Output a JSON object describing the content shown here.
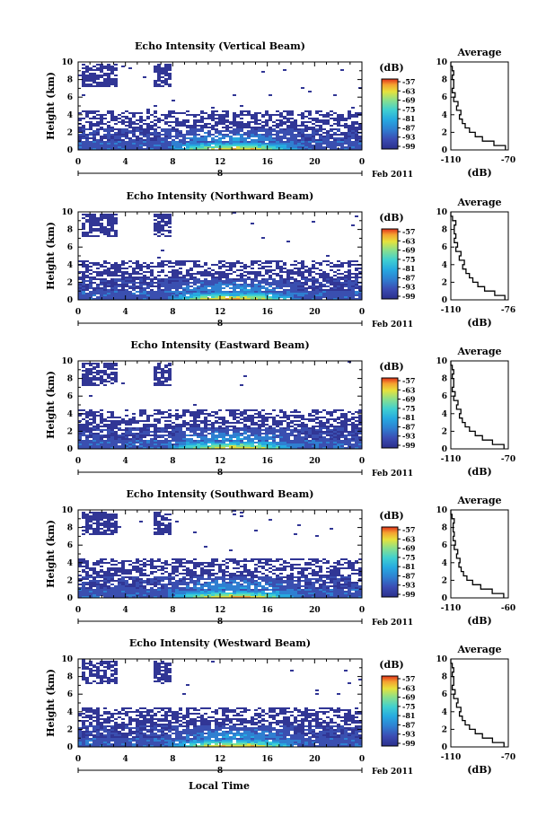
{
  "chart_data": [
    {
      "type": "heatmap",
      "title": "Echo Intensity (Vertical Beam)",
      "ylabel": "Height (km)",
      "xlabel": "",
      "x_ticks": [
        "0",
        "4",
        "8",
        "12",
        "16",
        "20",
        "0"
      ],
      "y_ticks": [
        "0",
        "2",
        "4",
        "6",
        "8",
        "10"
      ],
      "ylim": [
        0,
        10
      ],
      "xlim": [
        0,
        24
      ],
      "date_label": "Feb 2011",
      "date_marker": "8",
      "colorbar_unit": "(dB)",
      "colorbar_ticks": [
        "-57",
        "-63",
        "-69",
        "-75",
        "-81",
        "-87",
        "-93",
        "-99"
      ],
      "profile": {
        "title": "Average",
        "xlabel": "(dB)",
        "x_ticks": [
          "-110",
          "-70"
        ],
        "xlim": [
          -110,
          -70
        ],
        "y_ticks": [
          "0",
          "2",
          "4",
          "6",
          "8",
          "10"
        ],
        "points": [
          [
            -72,
            0
          ],
          [
            -80,
            0.5
          ],
          [
            -88,
            1
          ],
          [
            -93,
            1.5
          ],
          [
            -97,
            2
          ],
          [
            -100,
            2.5
          ],
          [
            -102,
            3
          ],
          [
            -104,
            3.5
          ],
          [
            -103,
            4
          ],
          [
            -106,
            4.5
          ],
          [
            -105,
            5
          ],
          [
            -108,
            5.5
          ],
          [
            -107,
            6
          ],
          [
            -109,
            6.5
          ],
          [
            -108,
            7
          ],
          [
            -108,
            7.5
          ],
          [
            -109,
            8
          ],
          [
            -108,
            8.5
          ],
          [
            -109,
            9
          ],
          [
            -110,
            9.5
          ]
        ]
      }
    },
    {
      "type": "heatmap",
      "title": "Echo Intensity (Northward Beam)",
      "ylabel": "Height (km)",
      "xlabel": "",
      "x_ticks": [
        "0",
        "4",
        "8",
        "12",
        "16",
        "20",
        "0"
      ],
      "y_ticks": [
        "0",
        "2",
        "4",
        "6",
        "8",
        "10"
      ],
      "ylim": [
        0,
        10
      ],
      "xlim": [
        0,
        24
      ],
      "date_label": "Feb 2011",
      "date_marker": "8",
      "colorbar_unit": "(dB)",
      "colorbar_ticks": [
        "-57",
        "-63",
        "-69",
        "-75",
        "-81",
        "-87",
        "-93",
        "-99"
      ],
      "profile": {
        "title": "Average",
        "xlabel": "(dB)",
        "x_ticks": [
          "-110",
          "-76"
        ],
        "xlim": [
          -110,
          -76
        ],
        "y_ticks": [
          "0",
          "2",
          "4",
          "6",
          "8",
          "10"
        ],
        "points": [
          [
            -78,
            0
          ],
          [
            -84,
            0.5
          ],
          [
            -90,
            1
          ],
          [
            -94,
            1.5
          ],
          [
            -97,
            2
          ],
          [
            -99,
            2.5
          ],
          [
            -101,
            3
          ],
          [
            -103,
            3.5
          ],
          [
            -102,
            4
          ],
          [
            -105,
            4.5
          ],
          [
            -104,
            5
          ],
          [
            -107,
            5.5
          ],
          [
            -106,
            6
          ],
          [
            -108,
            6.5
          ],
          [
            -107,
            7
          ],
          [
            -108,
            7.5
          ],
          [
            -108,
            8
          ],
          [
            -107,
            8.5
          ],
          [
            -109,
            9
          ],
          [
            -110,
            9.5
          ]
        ]
      }
    },
    {
      "type": "heatmap",
      "title": "Echo Intensity (Eastward Beam)",
      "ylabel": "Height (km)",
      "xlabel": "",
      "x_ticks": [
        "0",
        "4",
        "8",
        "12",
        "16",
        "20",
        "0"
      ],
      "y_ticks": [
        "0",
        "2",
        "4",
        "6",
        "8",
        "10"
      ],
      "ylim": [
        0,
        10
      ],
      "xlim": [
        0,
        24
      ],
      "date_label": "Feb 2011",
      "date_marker": "8",
      "colorbar_unit": "(dB)",
      "colorbar_ticks": [
        "-57",
        "-63",
        "-69",
        "-75",
        "-81",
        "-87",
        "-93",
        "-99"
      ],
      "profile": {
        "title": "Average",
        "xlabel": "(dB)",
        "x_ticks": [
          "-110",
          "-70"
        ],
        "xlim": [
          -110,
          -70
        ],
        "y_ticks": [
          "0",
          "2",
          "4",
          "6",
          "8",
          "10"
        ],
        "points": [
          [
            -73,
            0
          ],
          [
            -81,
            0.5
          ],
          [
            -88,
            1
          ],
          [
            -93,
            1.5
          ],
          [
            -97,
            2
          ],
          [
            -100,
            2.5
          ],
          [
            -102,
            3
          ],
          [
            -104,
            3.5
          ],
          [
            -103,
            4
          ],
          [
            -106,
            4.5
          ],
          [
            -105,
            5
          ],
          [
            -108,
            5.5
          ],
          [
            -107,
            6
          ],
          [
            -109,
            6.5
          ],
          [
            -108,
            7
          ],
          [
            -108,
            7.5
          ],
          [
            -109,
            8
          ],
          [
            -108,
            8.5
          ],
          [
            -109,
            9
          ],
          [
            -110,
            9.5
          ]
        ]
      }
    },
    {
      "type": "heatmap",
      "title": "Echo Intensity (Southward Beam)",
      "ylabel": "Height (km)",
      "xlabel": "",
      "x_ticks": [
        "0",
        "4",
        "8",
        "12",
        "16",
        "20",
        "0"
      ],
      "y_ticks": [
        "0",
        "2",
        "4",
        "6",
        "8",
        "10"
      ],
      "ylim": [
        0,
        10
      ],
      "xlim": [
        0,
        24
      ],
      "date_label": "Feb 2011",
      "date_marker": "8",
      "colorbar_unit": "(dB)",
      "colorbar_ticks": [
        "-57",
        "-63",
        "-69",
        "-75",
        "-81",
        "-87",
        "-93",
        "-99"
      ],
      "profile": {
        "title": "Average",
        "xlabel": "(dB)",
        "x_ticks": [
          "-110",
          "-60"
        ],
        "xlim": [
          -110,
          -60
        ],
        "y_ticks": [
          "0",
          "2",
          "4",
          "6",
          "8",
          "10"
        ],
        "points": [
          [
            -64,
            0
          ],
          [
            -74,
            0.5
          ],
          [
            -84,
            1
          ],
          [
            -91,
            1.5
          ],
          [
            -96,
            2
          ],
          [
            -99,
            2.5
          ],
          [
            -101,
            3
          ],
          [
            -103,
            3.5
          ],
          [
            -102,
            4
          ],
          [
            -105,
            4.5
          ],
          [
            -104,
            5
          ],
          [
            -107,
            5.5
          ],
          [
            -106,
            6
          ],
          [
            -108,
            6.5
          ],
          [
            -107,
            7
          ],
          [
            -108,
            7.5
          ],
          [
            -108,
            8
          ],
          [
            -107,
            8.5
          ],
          [
            -109,
            9
          ],
          [
            -110,
            9.5
          ]
        ]
      }
    },
    {
      "type": "heatmap",
      "title": "Echo Intensity (Westward Beam)",
      "ylabel": "Height (km)",
      "xlabel": "Local Time",
      "x_ticks": [
        "0",
        "4",
        "8",
        "12",
        "16",
        "20",
        "0"
      ],
      "y_ticks": [
        "0",
        "2",
        "4",
        "6",
        "8",
        "10"
      ],
      "ylim": [
        0,
        10
      ],
      "xlim": [
        0,
        24
      ],
      "date_label": "Feb 2011",
      "date_marker": "8",
      "colorbar_unit": "(dB)",
      "colorbar_ticks": [
        "-57",
        "-63",
        "-69",
        "-75",
        "-81",
        "-87",
        "-93",
        "-99"
      ],
      "profile": {
        "title": "Average",
        "xlabel": "(dB)",
        "x_ticks": [
          "-110",
          "-70"
        ],
        "xlim": [
          -110,
          -70
        ],
        "y_ticks": [
          "0",
          "2",
          "4",
          "6",
          "8",
          "10"
        ],
        "points": [
          [
            -73,
            0
          ],
          [
            -81,
            0.5
          ],
          [
            -88,
            1
          ],
          [
            -93,
            1.5
          ],
          [
            -97,
            2
          ],
          [
            -100,
            2.5
          ],
          [
            -102,
            3
          ],
          [
            -104,
            3.5
          ],
          [
            -103,
            4
          ],
          [
            -106,
            4.5
          ],
          [
            -105,
            5
          ],
          [
            -108,
            5.5
          ],
          [
            -107,
            6
          ],
          [
            -109,
            6.5
          ],
          [
            -108,
            7
          ],
          [
            -108,
            7.5
          ],
          [
            -109,
            8
          ],
          [
            -108,
            8.5
          ],
          [
            -109,
            9
          ],
          [
            -110,
            9.5
          ]
        ]
      }
    }
  ],
  "colors": {
    "background": "#ffffff",
    "colormap": [
      "#313695",
      "#3a4fb0",
      "#2f7fd1",
      "#26a9e0",
      "#40d0d0",
      "#7fe08f",
      "#e0e040",
      "#f5a030",
      "#e03a1e"
    ]
  }
}
